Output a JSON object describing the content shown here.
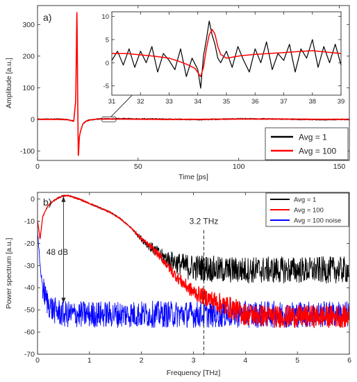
{
  "chart_data": [
    {
      "panel": "a)",
      "type": "line",
      "xlabel": "Time [ps]",
      "ylabel": "Amplitude [a.u.]",
      "xlim": [
        0,
        155
      ],
      "ylim": [
        -130,
        360
      ],
      "xticks": [
        0,
        50,
        100,
        150
      ],
      "yticks": [
        -100,
        0,
        100,
        200,
        300
      ],
      "grid": false,
      "legend": "lower-right",
      "series": [
        {
          "name": "Avg = 1",
          "color": "#000000",
          "x": [
            0,
            10,
            15,
            18,
            19,
            19.6,
            20,
            20.3,
            20.8,
            21.5,
            22.5,
            24,
            26,
            30,
            40,
            60,
            80,
            100,
            120,
            140,
            155
          ],
          "y": [
            0,
            1,
            -1,
            -6,
            60,
            350,
            40,
            -125,
            -55,
            -35,
            -15,
            -6,
            -2,
            1,
            2,
            1,
            -1,
            2,
            1,
            -1,
            0
          ]
        },
        {
          "name": "Avg = 100",
          "color": "#ff0000",
          "x": [
            0,
            10,
            15,
            18,
            19,
            19.6,
            20,
            20.3,
            20.8,
            21.5,
            22.5,
            24,
            26,
            30,
            40,
            60,
            80,
            100,
            120,
            140,
            155
          ],
          "y": [
            0,
            0,
            -1,
            -6,
            60,
            358,
            40,
            -125,
            -55,
            -35,
            -15,
            -6,
            -2,
            1,
            1,
            0,
            0,
            1,
            1,
            0,
            0
          ]
        }
      ],
      "annotation_box_x": [
        32,
        39
      ]
    },
    {
      "panel": "inset",
      "type": "line",
      "xlim": [
        31,
        39
      ],
      "ylim": [
        -7,
        11
      ],
      "xticks": [
        31,
        32,
        33,
        34,
        35,
        36,
        37,
        38,
        39
      ],
      "yticks": [
        -5,
        0,
        5,
        10
      ],
      "series": [
        {
          "name": "Avg = 1",
          "color": "#000000",
          "x": [
            31,
            31.2,
            31.4,
            31.6,
            31.8,
            32,
            32.2,
            32.4,
            32.6,
            32.8,
            33,
            33.2,
            33.4,
            33.6,
            33.8,
            34,
            34.1,
            34.2,
            34.3,
            34.4,
            34.5,
            34.6,
            34.7,
            34.8,
            35,
            35.2,
            35.4,
            35.6,
            35.8,
            36,
            36.2,
            36.4,
            36.6,
            36.8,
            37,
            37.2,
            37.4,
            37.6,
            37.8,
            38,
            38.2,
            38.4,
            38.6,
            38.8,
            39
          ],
          "y": [
            0.5,
            2.5,
            -0.5,
            3.0,
            -1.0,
            2.5,
            0.0,
            3.5,
            -2.0,
            2.0,
            0.5,
            -1.5,
            3.0,
            -3.0,
            1.0,
            -1.5,
            -5.5,
            1.5,
            5.0,
            9.0,
            6.0,
            4.0,
            1.0,
            0.0,
            2.5,
            -1.0,
            3.5,
            0.5,
            -2.0,
            3.0,
            0.0,
            4.5,
            -1.5,
            2.0,
            0.5,
            4.0,
            -2.0,
            3.0,
            1.0,
            5.0,
            -1.0,
            3.5,
            0.0,
            4.0,
            -0.5
          ]
        },
        {
          "name": "Avg = 100",
          "color": "#ff0000",
          "x": [
            31,
            31.5,
            32,
            32.5,
            33,
            33.3,
            33.6,
            33.9,
            34.1,
            34.2,
            34.3,
            34.4,
            34.5,
            34.6,
            34.7,
            34.8,
            35,
            35.5,
            36,
            36.5,
            37,
            37.5,
            38,
            38.5,
            39
          ],
          "y": [
            2.0,
            2.0,
            1.7,
            1.4,
            1.0,
            0.4,
            -0.3,
            -1.2,
            -3.0,
            -1.0,
            3.0,
            6.0,
            7.2,
            6.2,
            3.5,
            1.8,
            1.0,
            1.5,
            1.8,
            2.0,
            2.2,
            2.4,
            2.6,
            2.3,
            2.0
          ]
        }
      ]
    },
    {
      "panel": "b)",
      "type": "line",
      "xlabel": "Frequency [THz]",
      "ylabel": "Power spectrum [a.u.]",
      "xlim": [
        0,
        6
      ],
      "ylim": [
        -70,
        3
      ],
      "xticks": [
        0,
        1,
        2,
        3,
        4,
        5,
        6
      ],
      "yticks": [
        0,
        -10,
        -20,
        -30,
        -40,
        -50,
        -60,
        -70
      ],
      "grid": false,
      "legend": "top-right",
      "series": [
        {
          "name": "Avg = 1",
          "color": "#000000",
          "x": [
            0,
            0.05,
            0.1,
            0.2,
            0.3,
            0.4,
            0.5,
            0.6,
            0.8,
            1.0,
            1.2,
            1.4,
            1.6,
            1.8,
            2.0,
            2.2,
            2.4,
            2.6,
            2.8,
            3.0,
            3.2,
            3.5,
            4.0,
            4.5,
            5.0,
            5.5,
            6.0
          ],
          "y": [
            -10,
            -18,
            -8,
            -3,
            -1,
            0.5,
            1.5,
            1.5,
            0,
            -2,
            -4,
            -6,
            -9,
            -13,
            -18,
            -22,
            -26,
            -28,
            -30,
            -31,
            -31,
            -32,
            -32,
            -32,
            -32,
            -32,
            -32
          ]
        },
        {
          "name": "Avg = 100",
          "color": "#ff0000",
          "x": [
            0,
            0.05,
            0.1,
            0.2,
            0.3,
            0.4,
            0.5,
            0.6,
            0.8,
            1.0,
            1.2,
            1.4,
            1.6,
            1.8,
            2.0,
            2.2,
            2.4,
            2.6,
            2.8,
            3.0,
            3.2,
            3.5,
            3.8,
            4.0,
            4.5,
            5.0,
            5.5,
            6.0
          ],
          "y": [
            -10,
            -18,
            -8,
            -3,
            -1,
            0.5,
            1.5,
            1.5,
            0,
            -2,
            -4,
            -6,
            -9,
            -13,
            -18,
            -22,
            -27,
            -33,
            -38,
            -42,
            -44,
            -47,
            -50,
            -52,
            -53,
            -53,
            -53,
            -53
          ]
        },
        {
          "name": "Avg = 100 noise",
          "color": "#0000ff",
          "x": [
            0,
            0.05,
            0.1,
            0.15,
            0.2,
            0.3,
            0.5,
            1.0,
            2.0,
            3.0,
            4.0,
            5.0,
            6.0
          ],
          "y": [
            -15,
            -30,
            -40,
            -44,
            -47,
            -50,
            -52,
            -52,
            -52,
            -52,
            -52,
            -52,
            -52
          ]
        }
      ],
      "annotations": [
        {
          "text": "48 dB",
          "x": 0.15,
          "y": -22
        },
        {
          "text": "3.2 THz",
          "x": 3.2,
          "y": -10
        }
      ]
    }
  ]
}
